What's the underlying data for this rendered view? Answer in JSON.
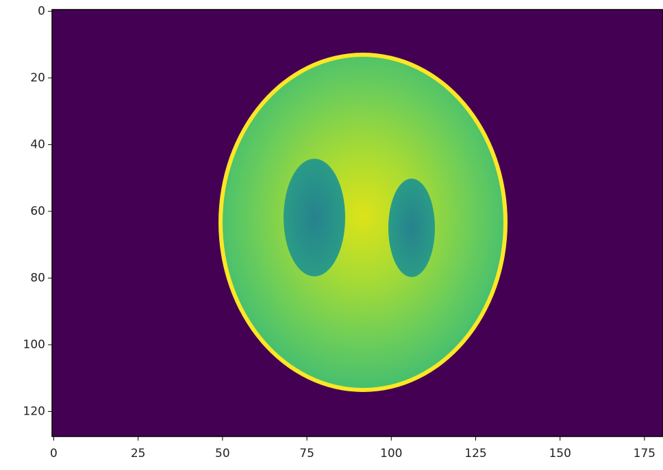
{
  "chart_data": {
    "type": "image",
    "xlim": [
      -0.5,
      180.5
    ],
    "ylim": [
      127.5,
      -0.5
    ],
    "xticks": [
      0,
      25,
      50,
      75,
      100,
      125,
      150,
      175
    ],
    "yticks": [
      0,
      20,
      40,
      60,
      80,
      100,
      120
    ],
    "colormap": "viridis"
  }
}
